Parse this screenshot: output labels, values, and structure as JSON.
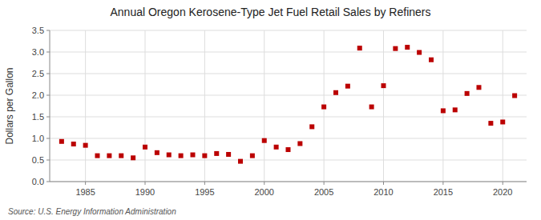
{
  "chart_data": {
    "type": "scatter",
    "title": "Annual Oregon Kerosene-Type Jet Fuel Retail Sales by Refiners",
    "ylabel": "Dollars per Gallon",
    "annotations": [
      "Source: U.S. Energy Information Administration"
    ],
    "x": [
      1983,
      1984,
      1985,
      1986,
      1987,
      1988,
      1989,
      1990,
      1991,
      1992,
      1993,
      1994,
      1995,
      1996,
      1997,
      1998,
      1999,
      2000,
      2001,
      2002,
      2003,
      2004,
      2005,
      2006,
      2007,
      2008,
      2009,
      2010,
      2011,
      2012,
      2013,
      2014,
      2015,
      2016,
      2017,
      2018,
      2019,
      2020,
      2021
    ],
    "values": [
      0.93,
      0.87,
      0.84,
      0.6,
      0.6,
      0.6,
      0.55,
      0.8,
      0.67,
      0.62,
      0.6,
      0.62,
      0.6,
      0.65,
      0.63,
      0.47,
      0.6,
      0.95,
      0.8,
      0.74,
      0.88,
      1.27,
      1.73,
      2.06,
      2.21,
      3.09,
      1.73,
      2.22,
      3.08,
      3.11,
      2.99,
      2.82,
      1.64,
      1.66,
      2.04,
      2.18,
      1.35,
      1.38,
      1.99
    ],
    "color": "#bb0000",
    "marker": "square",
    "xlim": [
      1982,
      2022
    ],
    "ylim": [
      0.0,
      3.5
    ],
    "xticks": [
      1985,
      1990,
      1995,
      2000,
      2005,
      2010,
      2015,
      2020
    ],
    "yticks": [
      {
        "value": 0.0,
        "label": "0.0"
      },
      0.5,
      {
        "value": 1.0,
        "label": "1.0"
      },
      1.5,
      {
        "value": 2.0,
        "label": "2.0"
      },
      2.5,
      {
        "value": 3.0,
        "label": "3.0"
      },
      3.5
    ],
    "grid": true
  }
}
